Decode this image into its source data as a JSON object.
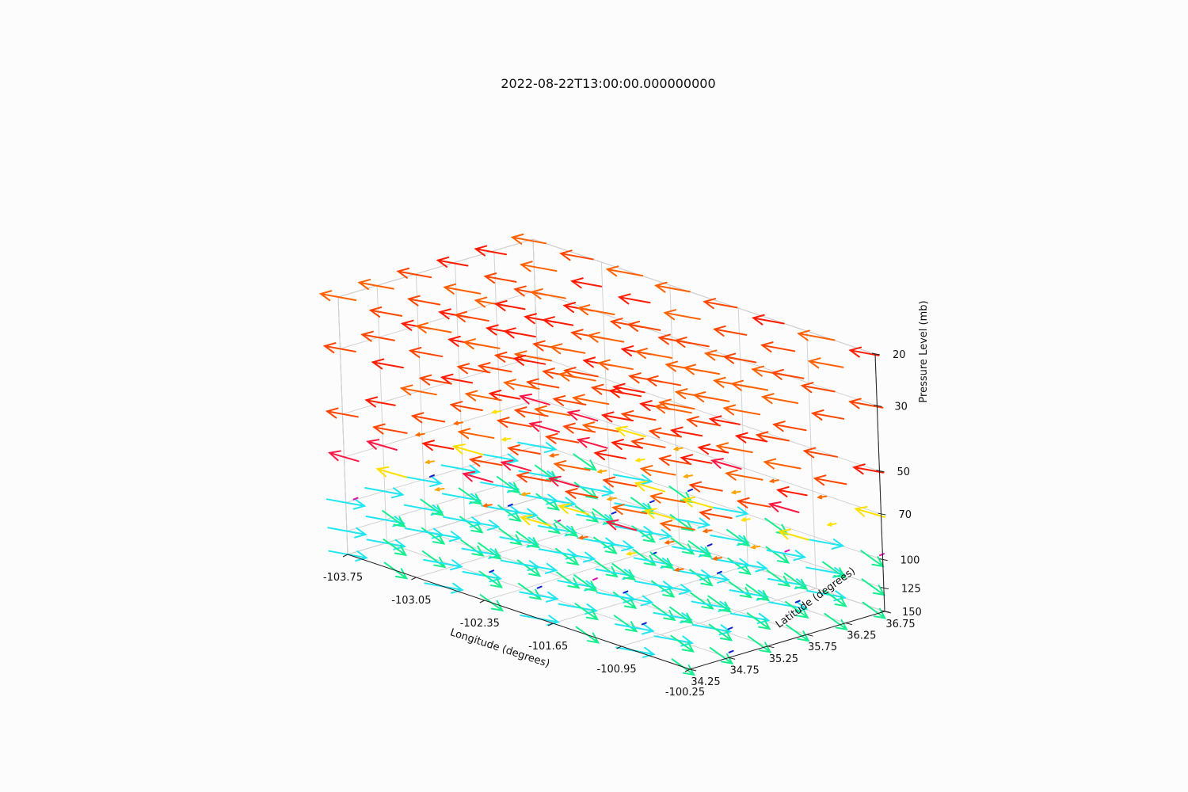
{
  "chart_data": {
    "type": "quiver3d",
    "title": "2022-08-22T13:00:00.000000000",
    "xlabel": "Longitude (degrees)",
    "ylabel": "Latitude (degrees)",
    "zlabel": "Pressure Level (mb)",
    "x_ticks": [
      "-103.75",
      "-103.05",
      "-102.35",
      "-101.65",
      "-100.95",
      "-100.25"
    ],
    "y_ticks": [
      "34.25",
      "34.75",
      "35.25",
      "35.75",
      "36.25",
      "36.75"
    ],
    "z_ticks": [
      "20",
      "30",
      "50",
      "70",
      "100",
      "125",
      "150"
    ],
    "x_range": [
      -103.75,
      -100.25
    ],
    "y_range": [
      34.25,
      36.75
    ],
    "z_levels_mb": [
      20,
      30,
      50,
      70,
      100,
      125,
      150
    ],
    "grid": true,
    "wind_pattern": [
      {
        "levels_mb": [
          20,
          30,
          50
        ],
        "direction": "east-to-west (easterly)",
        "colors": [
          "#ff1a00",
          "#ff4500",
          "#ff6000"
        ]
      },
      {
        "levels_mb": [
          70
        ],
        "direction": "mixed, weak",
        "colors": [
          "#ff6a00",
          "#ffa500",
          "#ffe000",
          "#ff1744"
        ]
      },
      {
        "levels_mb": [
          100,
          125,
          150
        ],
        "direction": "northwest-to-southeast (westerly)",
        "colors": [
          "#17ee8f",
          "#1fe6f0",
          "#1020d0",
          "#e010b0"
        ]
      }
    ]
  }
}
